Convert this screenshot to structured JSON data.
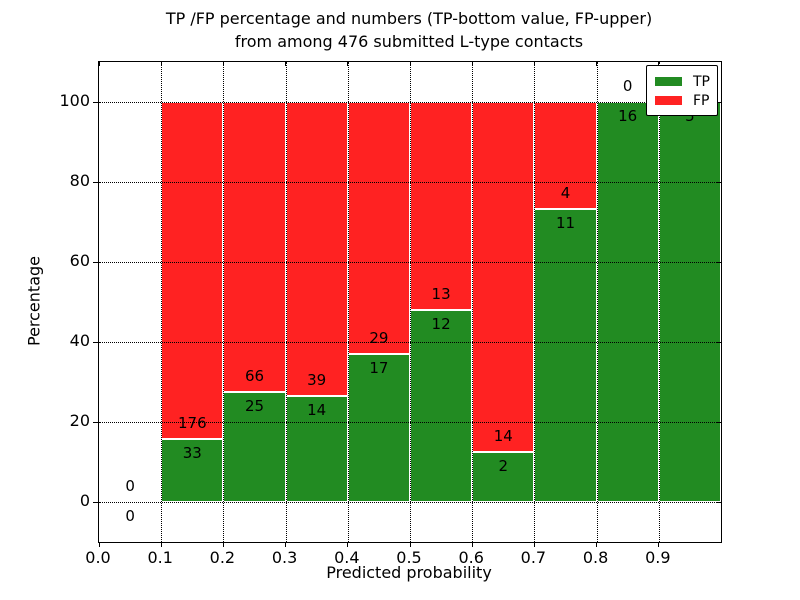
{
  "title": {
    "line1": "TP /FP percentage and numbers (TP-bottom value, FP-upper)",
    "line2": "from among 476 submitted L-type contacts"
  },
  "axes": {
    "xlabel": "Predicted probability",
    "ylabel": "Percentage",
    "x_ticks": [
      "0.0",
      "0.1",
      "0.2",
      "0.3",
      "0.4",
      "0.5",
      "0.6",
      "0.7",
      "0.8",
      "0.9"
    ],
    "y_ticks": [
      "0",
      "20",
      "40",
      "60",
      "80",
      "100"
    ]
  },
  "legend": {
    "position": "upper right",
    "items": [
      {
        "label": "TP",
        "color": "#228b22"
      },
      {
        "label": "FP",
        "color": "#ff2222"
      }
    ]
  },
  "colors": {
    "tp_green": "#228b22",
    "fp_red": "#ff2222",
    "background": "#ffffff",
    "grid": "#000000"
  },
  "chart_data": {
    "type": "bar",
    "stacked": true,
    "normalized_to_percent": true,
    "title": "TP /FP percentage and numbers (TP-bottom value, FP-upper) from among 476 submitted L-type contacts",
    "xlabel": "Predicted probability",
    "ylabel": "Percentage",
    "xlim": [
      0.0,
      1.0
    ],
    "ylim": [
      -10,
      110
    ],
    "grid": "dotted",
    "legend_position": "upper right",
    "total_submitted": 476,
    "bin_width": 0.1,
    "bins": [
      {
        "x0": 0.0,
        "tp": 0,
        "fp": 0
      },
      {
        "x0": 0.1,
        "tp": 33,
        "fp": 176
      },
      {
        "x0": 0.2,
        "tp": 25,
        "fp": 66
      },
      {
        "x0": 0.3,
        "tp": 14,
        "fp": 39
      },
      {
        "x0": 0.4,
        "tp": 17,
        "fp": 29
      },
      {
        "x0": 0.5,
        "tp": 12,
        "fp": 13
      },
      {
        "x0": 0.6,
        "tp": 2,
        "fp": 14
      },
      {
        "x0": 0.7,
        "tp": 11,
        "fp": 4
      },
      {
        "x0": 0.8,
        "tp": 16,
        "fp": 0
      },
      {
        "x0": 0.9,
        "tp": 5,
        "fp": 0
      }
    ],
    "series": [
      {
        "name": "TP",
        "values": [
          0,
          33,
          25,
          14,
          17,
          12,
          2,
          11,
          16,
          5
        ]
      },
      {
        "name": "FP",
        "values": [
          0,
          176,
          66,
          39,
          29,
          13,
          14,
          4,
          0,
          0
        ]
      }
    ],
    "y_grid_values": [
      0,
      20,
      40,
      60,
      80,
      100
    ],
    "x_grid_values": [
      0.1,
      0.2,
      0.3,
      0.4,
      0.5,
      0.6,
      0.7,
      0.8,
      0.9
    ]
  }
}
